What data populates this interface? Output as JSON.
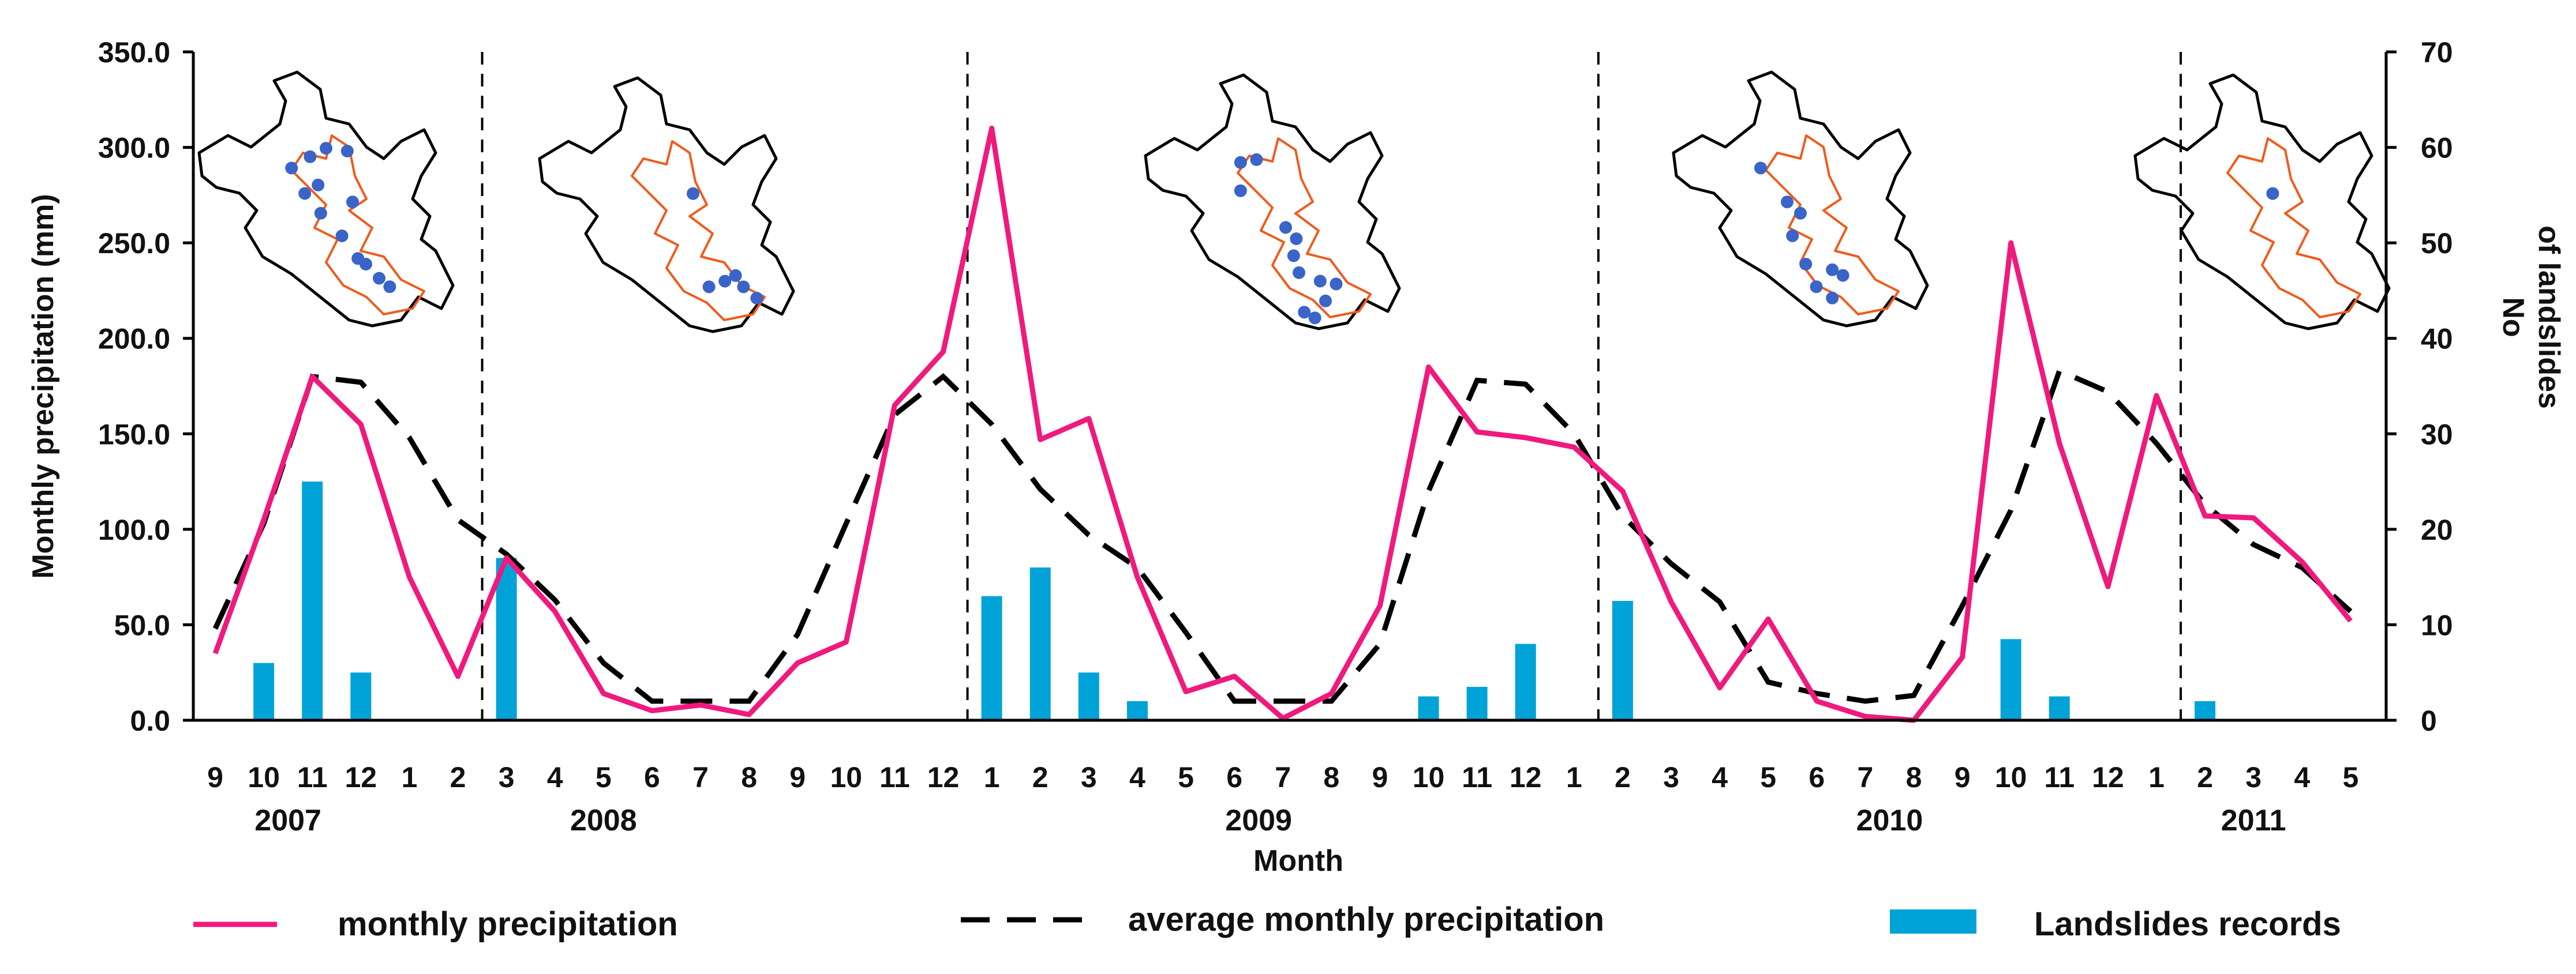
{
  "chart_data": {
    "type": "bar+line",
    "title": "",
    "xlabel": "Month",
    "ylabel_left": "Monthly precipitation (mm)",
    "ylabel_right_line1": "No",
    "ylabel_right_line2": "of landslides",
    "ylim_left": [
      0,
      350
    ],
    "ylim_right": [
      0,
      70
    ],
    "yticks_left": [
      "0.0",
      "50.0",
      "100.0",
      "150.0",
      "200.0",
      "250.0",
      "300.0",
      "350.0"
    ],
    "yticks_right": [
      "0",
      "10",
      "20",
      "30",
      "40",
      "50",
      "60",
      "70"
    ],
    "months": [
      "9",
      "10",
      "11",
      "12",
      "1",
      "2",
      "3",
      "4",
      "5",
      "6",
      "7",
      "8",
      "9",
      "10",
      "11",
      "12",
      "1",
      "2",
      "3",
      "4",
      "5",
      "6",
      "7",
      "8",
      "9",
      "10",
      "11",
      "12",
      "1",
      "2",
      "3",
      "4",
      "5",
      "6",
      "7",
      "8",
      "9",
      "10",
      "11",
      "12",
      "1",
      "2",
      "3",
      "4",
      "5"
    ],
    "years": [
      {
        "label": "2007",
        "center_index": 1.5
      },
      {
        "label": "2008",
        "center_index": 8
      },
      {
        "label": "2009",
        "center_index": 21.5
      },
      {
        "label": "2010",
        "center_index": 34.5
      },
      {
        "label": "2011",
        "center_index": 42
      }
    ],
    "separators_after_index": [
      5,
      15,
      28,
      40
    ],
    "series": [
      {
        "name": "monthly precipitation",
        "kind": "line",
        "values": [
          35,
          105,
          180,
          155,
          75,
          23,
          85,
          57,
          14,
          5,
          8,
          3,
          30,
          41,
          165,
          193,
          310,
          147,
          158,
          75,
          15,
          23,
          1,
          14,
          60,
          185,
          151,
          148,
          143,
          120,
          62,
          17,
          53,
          10,
          2,
          0,
          33,
          250,
          145,
          70,
          170,
          107,
          106,
          83,
          52
        ]
      },
      {
        "name": "average monthly precipitation",
        "kind": "dashed-line",
        "values": [
          48,
          103,
          180,
          177,
          148,
          105,
          87,
          63,
          30,
          10,
          10,
          10,
          45,
          103,
          160,
          180,
          155,
          121,
          97,
          80,
          46,
          10,
          10,
          10,
          40,
          120,
          178,
          176,
          150,
          107,
          82,
          62,
          20,
          14,
          10,
          13,
          60,
          110,
          183,
          172,
          145,
          113,
          92,
          80,
          57
        ]
      },
      {
        "name": "Landslides records",
        "kind": "bar",
        "values": [
          0,
          6,
          25,
          5,
          0,
          0,
          17,
          0,
          0,
          0,
          0,
          0,
          0,
          0,
          0,
          0,
          13,
          16,
          5,
          2,
          0,
          0,
          0,
          0,
          0,
          2.5,
          3.5,
          8,
          0,
          12.5,
          0,
          0,
          0,
          0,
          0,
          0,
          0,
          8.5,
          2.5,
          0,
          0,
          2,
          0,
          0,
          0
        ]
      }
    ],
    "legend": [
      {
        "label": "monthly precipitation",
        "color": "#f0197d",
        "style": "solid"
      },
      {
        "label": "average monthly precipitation",
        "color": "#000000",
        "style": "dashed"
      },
      {
        "label": "Landslides records",
        "color": "#00a3d7",
        "style": "bar"
      }
    ]
  },
  "insets": [
    {
      "name": "2007",
      "dots": [
        [
          0.37,
          0.36
        ],
        [
          0.44,
          0.32
        ],
        [
          0.5,
          0.29
        ],
        [
          0.47,
          0.42
        ],
        [
          0.48,
          0.52
        ],
        [
          0.6,
          0.48
        ],
        [
          0.58,
          0.3
        ],
        [
          0.62,
          0.68
        ],
        [
          0.7,
          0.75
        ],
        [
          0.74,
          0.78
        ],
        [
          0.65,
          0.7
        ],
        [
          0.56,
          0.6
        ],
        [
          0.42,
          0.45
        ]
      ]
    },
    {
      "name": "2008",
      "dots": [
        [
          0.6,
          0.43
        ],
        [
          0.72,
          0.74
        ],
        [
          0.79,
          0.76
        ],
        [
          0.84,
          0.8
        ],
        [
          0.76,
          0.72
        ],
        [
          0.66,
          0.76
        ]
      ]
    },
    {
      "name": "2009",
      "dots": [
        [
          0.38,
          0.33
        ],
        [
          0.44,
          0.32
        ],
        [
          0.38,
          0.43
        ],
        [
          0.55,
          0.56
        ],
        [
          0.59,
          0.6
        ],
        [
          0.6,
          0.72
        ],
        [
          0.68,
          0.75
        ],
        [
          0.74,
          0.76
        ],
        [
          0.7,
          0.82
        ],
        [
          0.62,
          0.86
        ],
        [
          0.66,
          0.88
        ],
        [
          0.58,
          0.66
        ]
      ]
    },
    {
      "name": "2010",
      "dots": [
        [
          0.35,
          0.36
        ],
        [
          0.45,
          0.48
        ],
        [
          0.5,
          0.52
        ],
        [
          0.47,
          0.6
        ],
        [
          0.52,
          0.7
        ],
        [
          0.62,
          0.72
        ],
        [
          0.66,
          0.74
        ],
        [
          0.56,
          0.78
        ],
        [
          0.62,
          0.82
        ]
      ]
    },
    {
      "name": "2011",
      "dots": [
        [
          0.54,
          0.44
        ]
      ]
    }
  ]
}
